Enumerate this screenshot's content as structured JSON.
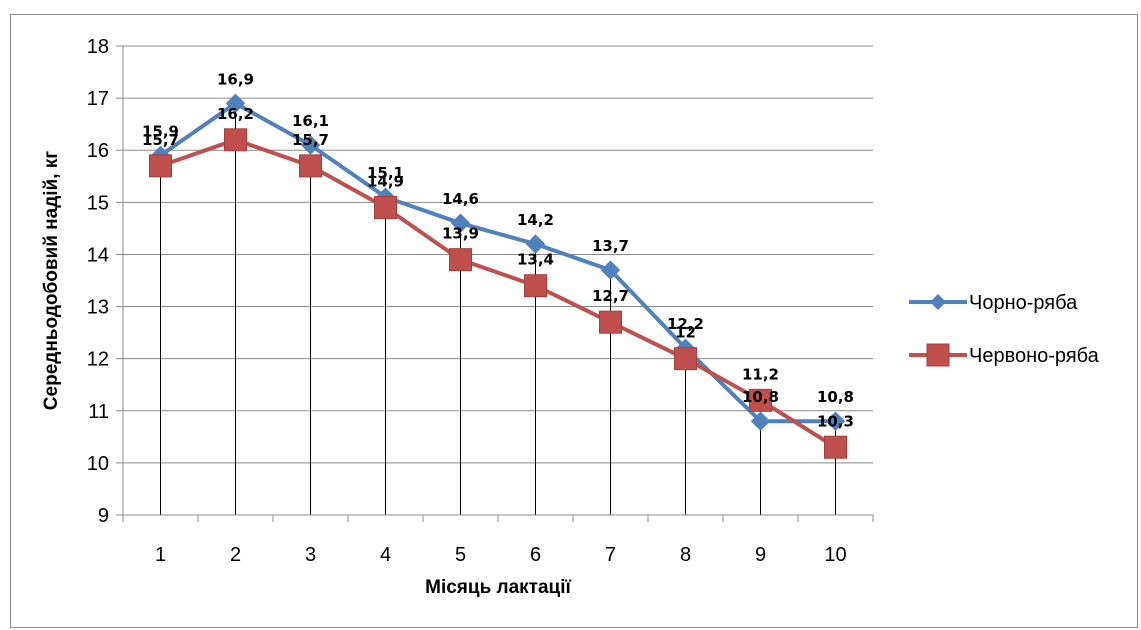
{
  "chart_data": {
    "type": "line",
    "title": "",
    "xlabel": "Місяць лактації",
    "ylabel": "Середньодобовий  надій, кг",
    "categories": [
      "1",
      "2",
      "3",
      "4",
      "5",
      "6",
      "7",
      "8",
      "9",
      "10"
    ],
    "ylim": [
      9,
      18
    ],
    "yticks": [
      "9",
      "10",
      "11",
      "12",
      "13",
      "14",
      "15",
      "16",
      "17",
      "18"
    ],
    "grid": "horizontal major gridlines with vertical drop lines",
    "legend_position": "right",
    "series": [
      {
        "name": "Чорно-ряба",
        "color": "#4F81BD",
        "marker": "diamond",
        "values": [
          15.9,
          16.9,
          16.1,
          15.1,
          14.6,
          14.2,
          13.7,
          12.2,
          10.8,
          10.8
        ],
        "labels": [
          "15,9",
          "16,9",
          "16,1",
          "15,1",
          "14,6",
          "14,2",
          "13,7",
          "12,2",
          "10,8",
          "10,8"
        ]
      },
      {
        "name": "Червоно-ряба",
        "color": "#C0504D",
        "marker": "square",
        "values": [
          15.7,
          16.2,
          15.7,
          14.9,
          13.9,
          13.4,
          12.7,
          12.0,
          11.2,
          10.3
        ],
        "labels": [
          "15,7",
          "16,2",
          "15,7",
          "14,9",
          "13,9",
          "13,4",
          "12,7",
          "12",
          "11,2",
          "10,3"
        ]
      }
    ]
  }
}
